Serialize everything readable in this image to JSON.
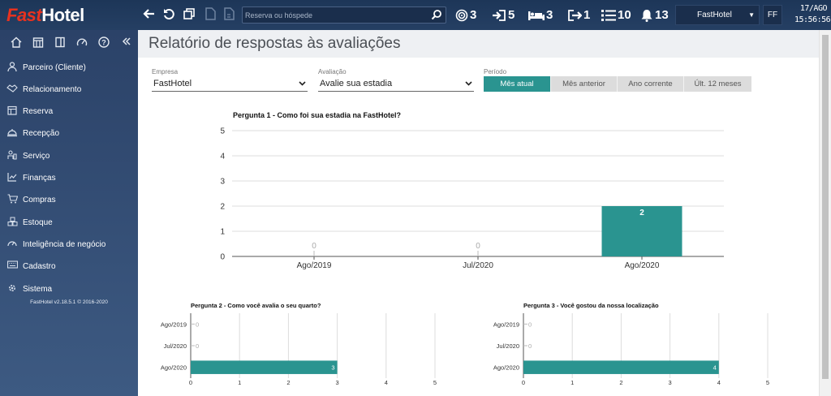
{
  "app": {
    "logo_fast": "Fast",
    "logo_hotel": "Hotel",
    "version": "FastHotel v2.18.5.1 © 2016-2020"
  },
  "topbar": {
    "search_placeholder": "Reserva ou hóspede",
    "counters": [
      {
        "icon": "target-icon",
        "value": "3"
      },
      {
        "icon": "check-in-icon",
        "value": "5"
      },
      {
        "icon": "bed-icon",
        "value": "3"
      },
      {
        "icon": "check-out-icon",
        "value": "1"
      },
      {
        "icon": "list-icon",
        "value": "10"
      },
      {
        "icon": "bell-icon",
        "value": "13"
      }
    ],
    "hotel": "FastHotel",
    "user_initials": "FF",
    "date": "17/AGO",
    "time": "15:56:56"
  },
  "sidebar": {
    "items": [
      {
        "label": "Parceiro (Cliente)",
        "icon": "person-icon"
      },
      {
        "label": "Relacionamento",
        "icon": "handshake-icon"
      },
      {
        "label": "Reserva",
        "icon": "calendar-icon"
      },
      {
        "label": "Recepção",
        "icon": "reception-bell-icon"
      },
      {
        "label": "Serviço",
        "icon": "service-icon"
      },
      {
        "label": "Finanças",
        "icon": "finance-chart-icon"
      },
      {
        "label": "Compras",
        "icon": "cart-icon"
      },
      {
        "label": "Estoque",
        "icon": "boxes-icon"
      },
      {
        "label": "Inteligência de negócio",
        "icon": "gauge-icon"
      },
      {
        "label": "Cadastro",
        "icon": "keyboard-icon"
      },
      {
        "label": "Sistema",
        "icon": "gear-icon"
      }
    ]
  },
  "page": {
    "title": "Relatório de respostas às avaliações",
    "filters": {
      "empresa_label": "Empresa",
      "empresa_value": "FastHotel",
      "avaliacao_label": "Avaliação",
      "avaliacao_value": "Avalie sua estadia",
      "periodo_label": "Período",
      "periodo_options": [
        "Mês atual",
        "Mês anterior",
        "Ano corrente",
        "Últ. 12 meses"
      ],
      "periodo_selected": "Mês atual"
    }
  },
  "colors": {
    "accent": "#2a9490",
    "topbar": "#1d3658",
    "sidebar": "#2b4268",
    "logo_red": "#e8321f"
  },
  "chart_data": [
    {
      "type": "bar",
      "orientation": "vertical",
      "title": "Pergunta 1 - Como foi sua estadia na FastHotel?",
      "categories": [
        "Ago/2019",
        "Jul/2020",
        "Ago/2020"
      ],
      "values": [
        0,
        0,
        2
      ],
      "data_labels": [
        "0",
        "0",
        "2"
      ],
      "ylim": [
        0,
        5
      ],
      "yticks": [
        0,
        1,
        2,
        3,
        4,
        5
      ],
      "grid": true
    },
    {
      "type": "bar",
      "orientation": "horizontal",
      "title": "Pergunta 2 - Como você avalia o seu quarto?",
      "categories": [
        "Ago/2019",
        "Jul/2020",
        "Ago/2020"
      ],
      "values": [
        0,
        0,
        3
      ],
      "data_labels": [
        "0",
        "0",
        "3"
      ],
      "xlim": [
        0,
        5
      ],
      "xticks": [
        0,
        1,
        2,
        3,
        4,
        5
      ],
      "grid": true
    },
    {
      "type": "bar",
      "orientation": "horizontal",
      "title": "Pergunta 3 - Você gostou da nossa localização",
      "categories": [
        "Ago/2019",
        "Jul/2020",
        "Ago/2020"
      ],
      "values": [
        0,
        0,
        4
      ],
      "data_labels": [
        "0",
        "0",
        "4"
      ],
      "xlim": [
        0,
        5
      ],
      "xticks": [
        0,
        1,
        2,
        3,
        4,
        5
      ],
      "grid": true
    }
  ]
}
